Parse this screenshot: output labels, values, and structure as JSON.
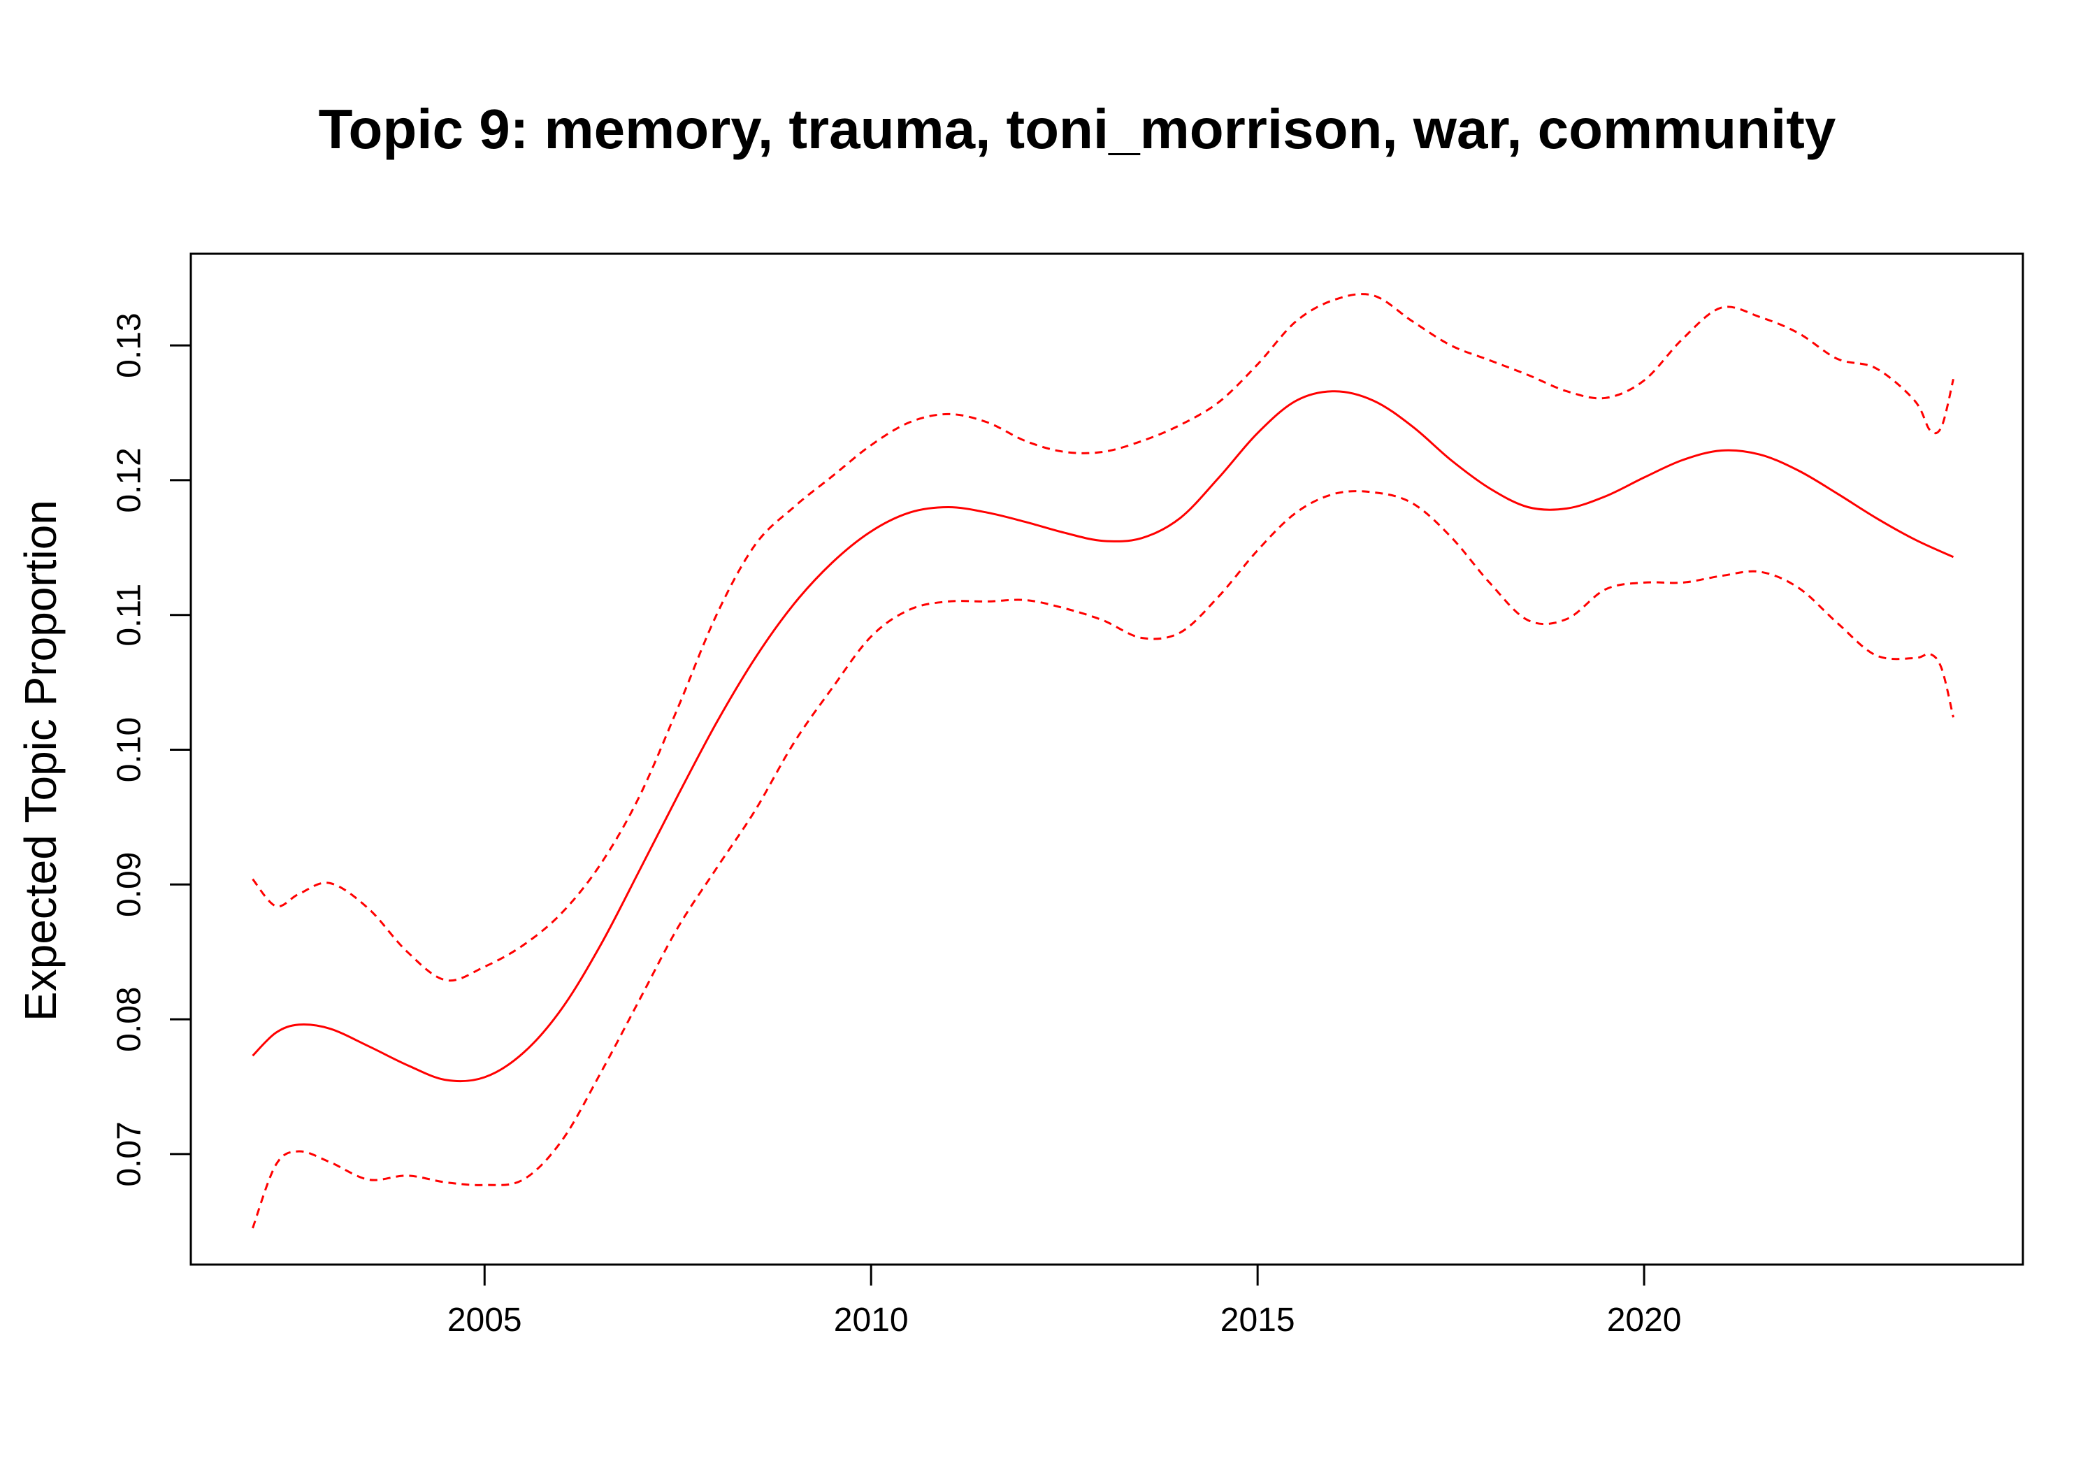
{
  "chart_data": {
    "type": "line",
    "title": "Topic 9: memory, trauma, toni_morrison, war, community",
    "xlabel": "",
    "ylabel": "Expected Topic Proportion",
    "xlim": [
      2001.2,
      2024.9
    ],
    "ylim": [
      0.0618,
      0.1368
    ],
    "x_ticks": [
      2005,
      2010,
      2015,
      2020
    ],
    "x_tick_labels": [
      "2005",
      "2010",
      "2015",
      "2020"
    ],
    "y_ticks": [
      0.07,
      0.08,
      0.09,
      0.1,
      0.11,
      0.12,
      0.13
    ],
    "y_tick_labels": [
      "0.07",
      "0.08",
      "0.09",
      "0.10",
      "0.11",
      "0.12",
      "0.13"
    ],
    "grid": false,
    "legend": "none",
    "series": [
      {
        "role": "estimate",
        "style": "solid",
        "color": "#ff0000",
        "x": [
          2002.0,
          2002.3,
          2002.6,
          2003.0,
          2003.5,
          2004.0,
          2004.5,
          2005.0,
          2005.5,
          2006.0,
          2006.5,
          2007.0,
          2007.5,
          2008.0,
          2008.5,
          2009.0,
          2009.5,
          2010.0,
          2010.5,
          2011.0,
          2011.5,
          2012.0,
          2012.5,
          2013.0,
          2013.5,
          2014.0,
          2014.5,
          2015.0,
          2015.5,
          2016.0,
          2016.5,
          2017.0,
          2017.5,
          2018.0,
          2018.5,
          2019.0,
          2019.5,
          2020.0,
          2020.5,
          2021.0,
          2021.5,
          2022.0,
          2022.5,
          2023.0,
          2023.5,
          2024.0
        ],
        "y": [
          0.0773,
          0.079,
          0.0796,
          0.0793,
          0.078,
          0.0766,
          0.0755,
          0.0757,
          0.0775,
          0.0808,
          0.0855,
          0.091,
          0.0966,
          0.102,
          0.1068,
          0.1108,
          0.1139,
          0.1162,
          0.1176,
          0.118,
          0.1176,
          0.1169,
          0.1161,
          0.1155,
          0.1157,
          0.1172,
          0.1202,
          0.1235,
          0.1259,
          0.1266,
          0.1259,
          0.124,
          0.1215,
          0.1194,
          0.118,
          0.1179,
          0.1188,
          0.1202,
          0.1215,
          0.1222,
          0.1219,
          0.1207,
          0.119,
          0.1172,
          0.1156,
          0.1143
        ]
      },
      {
        "role": "upper",
        "style": "dashed",
        "color": "#ff0000",
        "x": [
          2002.0,
          2002.3,
          2002.6,
          2003.0,
          2003.5,
          2004.0,
          2004.5,
          2005.0,
          2005.5,
          2006.0,
          2006.5,
          2007.0,
          2007.5,
          2008.0,
          2008.5,
          2009.0,
          2009.5,
          2010.0,
          2010.5,
          2011.0,
          2011.5,
          2012.0,
          2012.5,
          2013.0,
          2013.5,
          2014.0,
          2014.5,
          2015.0,
          2015.5,
          2016.0,
          2016.5,
          2017.0,
          2017.5,
          2018.0,
          2018.5,
          2019.0,
          2019.5,
          2020.0,
          2020.5,
          2021.0,
          2021.5,
          2022.0,
          2022.5,
          2023.0,
          2023.5,
          2023.7,
          2023.85,
          2024.0
        ],
        "y": [
          0.0904,
          0.0884,
          0.0893,
          0.0901,
          0.0882,
          0.085,
          0.0829,
          0.0839,
          0.0855,
          0.0879,
          0.0915,
          0.0965,
          0.1031,
          0.11,
          0.1152,
          0.118,
          0.1203,
          0.1226,
          0.1243,
          0.1249,
          0.1243,
          0.1229,
          0.1221,
          0.1221,
          0.1229,
          0.1241,
          0.1258,
          0.1286,
          0.1318,
          0.1334,
          0.1337,
          0.1318,
          0.13,
          0.1289,
          0.1278,
          0.1266,
          0.1261,
          0.1274,
          0.1305,
          0.1328,
          0.1321,
          0.1309,
          0.129,
          0.1283,
          0.1259,
          0.1237,
          0.124,
          0.1275
        ]
      },
      {
        "role": "lower",
        "style": "dashed",
        "color": "#ff0000",
        "x": [
          2002.0,
          2002.3,
          2002.6,
          2003.0,
          2003.5,
          2004.0,
          2004.5,
          2005.0,
          2005.5,
          2006.0,
          2006.5,
          2007.0,
          2007.5,
          2008.0,
          2008.5,
          2009.0,
          2009.5,
          2010.0,
          2010.5,
          2011.0,
          2011.5,
          2012.0,
          2012.5,
          2013.0,
          2013.5,
          2014.0,
          2014.5,
          2015.0,
          2015.5,
          2016.0,
          2016.5,
          2017.0,
          2017.5,
          2018.0,
          2018.5,
          2019.0,
          2019.5,
          2020.0,
          2020.5,
          2021.0,
          2021.5,
          2022.0,
          2022.5,
          2023.0,
          2023.5,
          2023.7,
          2023.85,
          2024.0
        ],
        "y": [
          0.0645,
          0.0692,
          0.0702,
          0.0694,
          0.0681,
          0.0684,
          0.0679,
          0.0677,
          0.0681,
          0.071,
          0.076,
          0.0814,
          0.0868,
          0.0912,
          0.0955,
          0.1005,
          0.1046,
          0.1084,
          0.1104,
          0.111,
          0.111,
          0.1111,
          0.1105,
          0.1096,
          0.1083,
          0.1087,
          0.1114,
          0.1148,
          0.1176,
          0.119,
          0.1191,
          0.1183,
          0.1158,
          0.1124,
          0.1096,
          0.1097,
          0.1119,
          0.1124,
          0.1124,
          0.1129,
          0.1132,
          0.112,
          0.1094,
          0.107,
          0.1068,
          0.1071,
          0.106,
          0.1024
        ]
      }
    ]
  }
}
